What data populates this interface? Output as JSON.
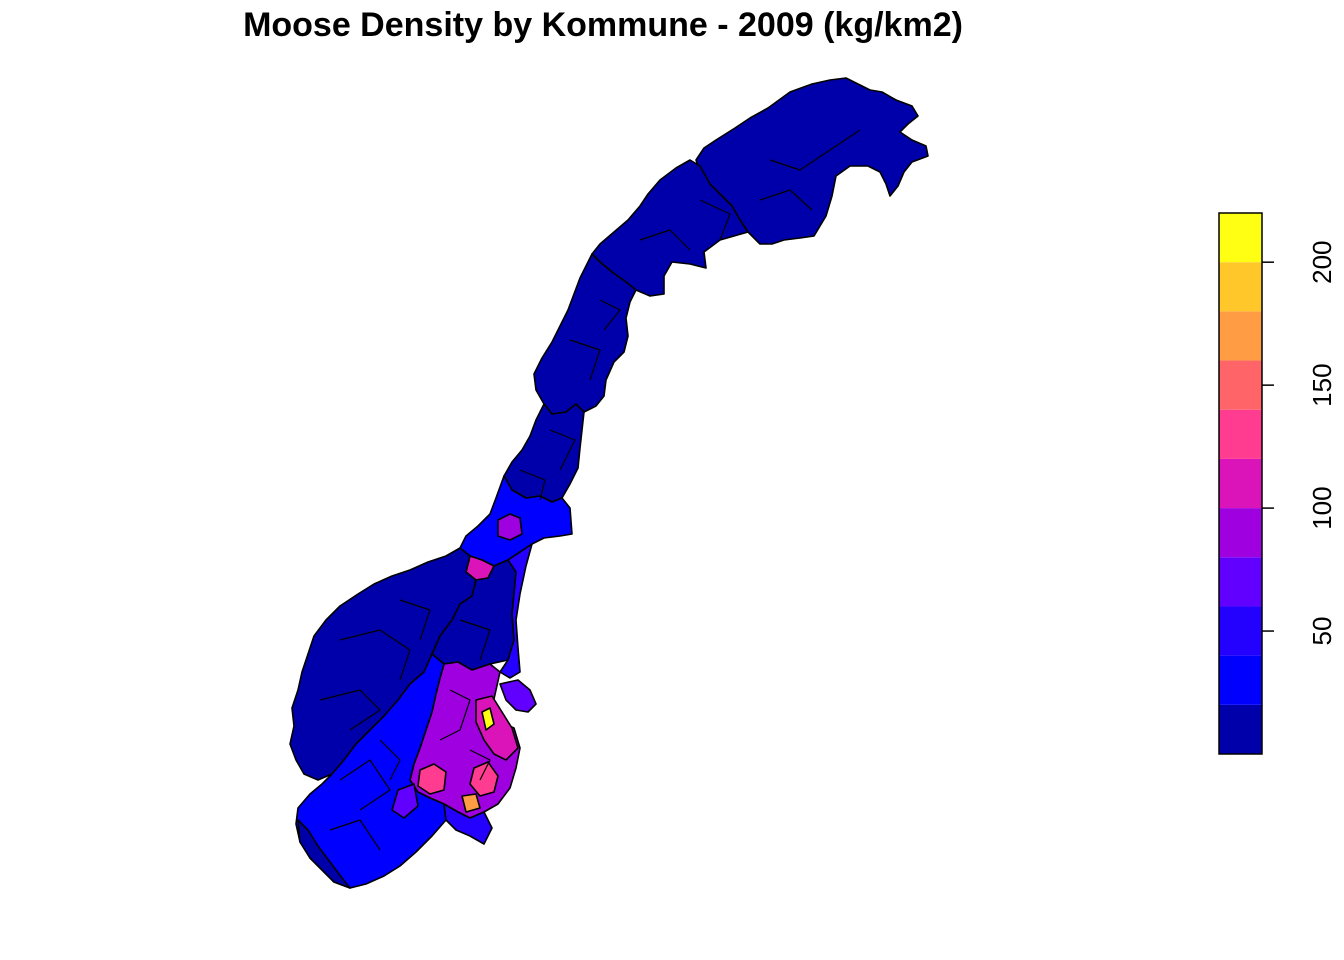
{
  "title": "Moose Density by Kommune - 2009 (kg/km2)",
  "legend": {
    "colors": [
      "#0000AA",
      "#0000FF",
      "#2400FF",
      "#6100FF",
      "#9E00E0",
      "#DA14B8",
      "#FF3C90",
      "#FF6469",
      "#FF9C44",
      "#FFC72A",
      "#FFFF14"
    ],
    "range": [
      0,
      220
    ],
    "breaks": [
      0,
      20,
      40,
      60,
      80,
      100,
      120,
      140,
      160,
      180,
      200,
      220
    ],
    "ticks": [
      {
        "value": 50,
        "label": "50"
      },
      {
        "value": 100,
        "label": "100"
      },
      {
        "value": 150,
        "label": "150"
      },
      {
        "value": 200,
        "label": "200"
      }
    ]
  },
  "map": {
    "region_colors": {
      "north": "#0000AA",
      "central": "#0000AA",
      "west": "#0000AA",
      "south_blue": "#0000FF",
      "east_blue": "#2400FF",
      "purple": "#9E00E0",
      "magenta": "#DA14B8",
      "pink": "#FF3C90",
      "orange": "#FF9C44",
      "yellow": "#FFFF14",
      "border": "#000000"
    }
  }
}
